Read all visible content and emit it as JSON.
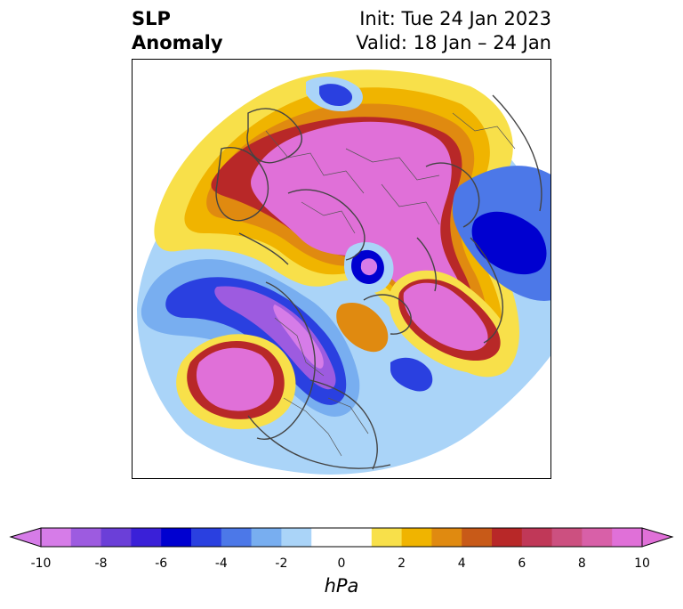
{
  "title": {
    "left_line1": "SLP",
    "left_line2": "Anomaly",
    "right_line1": "Init: Tue 24 Jan 2023",
    "right_line2": "Valid: 18 Jan – 24 Jan"
  },
  "colorbar": {
    "label": "hPa",
    "ticks": [
      "-10",
      "-8",
      "-6",
      "-4",
      "-2",
      "0",
      "2",
      "4",
      "6",
      "8",
      "10"
    ],
    "colors": [
      "#d67ce8",
      "#9d5be0",
      "#6b3fd8",
      "#3a20d8",
      "#0000d0",
      "#2a40e0",
      "#4c78e8",
      "#78aef0",
      "#aad4f8",
      "#ffffff",
      "#ffffff",
      "#f8e04a",
      "#f0b400",
      "#e08a10",
      "#c85a18",
      "#b82828",
      "#c03858",
      "#cc5080",
      "#d860a8",
      "#e070d8"
    ],
    "min_color": "#d67ce8",
    "max_color": "#e070d8"
  }
}
